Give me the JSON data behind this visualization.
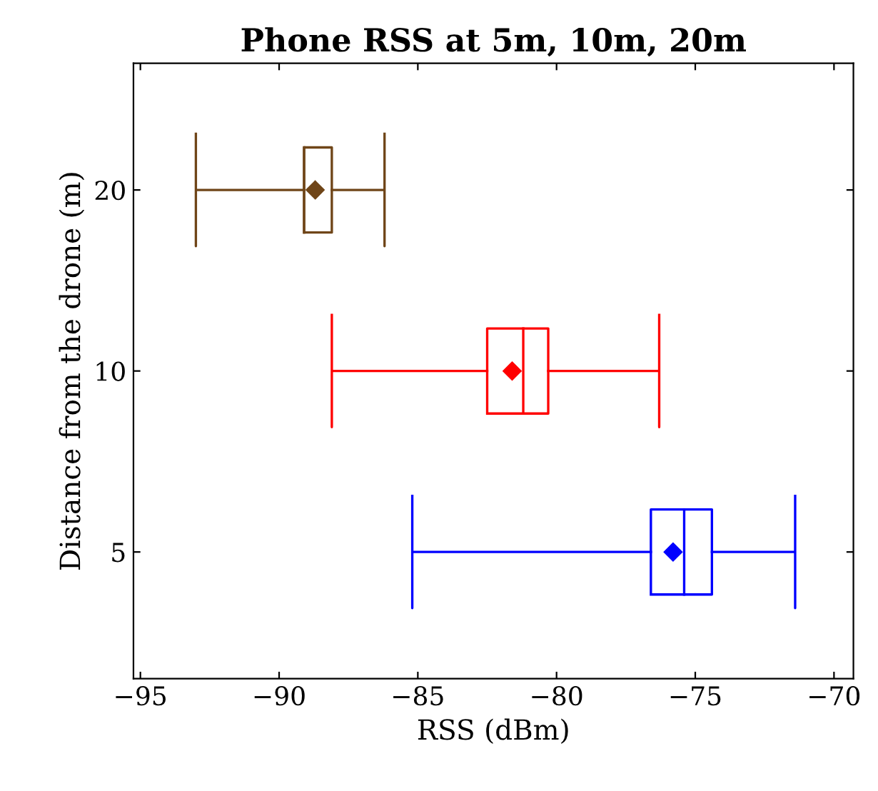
{
  "chart_data": {
    "type": "box",
    "orientation": "horizontal",
    "title": "Phone RSS at 5m, 10m, 20m",
    "xlabel": "RSS (dBm)",
    "ylabel": "Distance from the drone (m)",
    "categories": [
      "20",
      "10",
      "5"
    ],
    "boxes": [
      {
        "low": -93.0,
        "q1": -89.1,
        "median": -89.1,
        "q3": -88.1,
        "high": -86.2,
        "mean": -88.7
      },
      {
        "low": -88.1,
        "q1": -82.5,
        "median": -81.2,
        "q3": -80.3,
        "high": -76.3,
        "mean": -81.6
      },
      {
        "low": -85.2,
        "q1": -76.6,
        "median": -75.4,
        "q3": -74.4,
        "high": -71.4,
        "mean": -75.8
      }
    ],
    "colors": [
      "#6f4518",
      "#ff0000",
      "#0000ff"
    ],
    "marker": "diamond",
    "xlim": [
      -95.25,
      -69.3
    ],
    "xticks": [
      {
        "value": -95,
        "label": "−95"
      },
      {
        "value": -90,
        "label": "−90"
      },
      {
        "value": -85,
        "label": "−85"
      },
      {
        "value": -80,
        "label": "−80"
      },
      {
        "value": -75,
        "label": "−75"
      },
      {
        "value": -70,
        "label": "−70"
      }
    ],
    "grid": false
  }
}
